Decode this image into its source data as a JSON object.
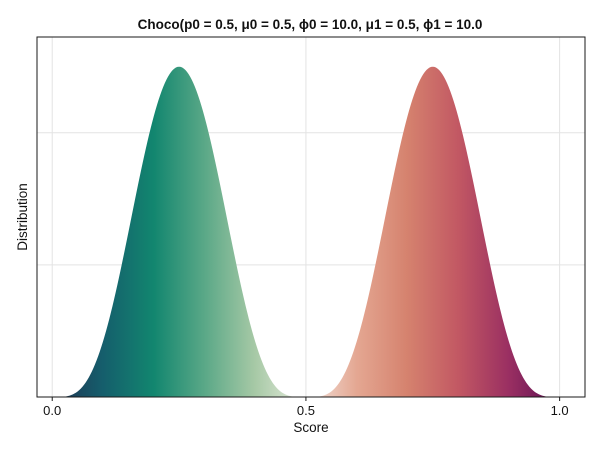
{
  "chart_data": {
    "type": "area",
    "title": "Choco(p0 = 0.5, μ0 = 0.5, ϕ0 = 10.0, μ1 = 0.5, ϕ1 = 10.0",
    "xlabel": "Score",
    "ylabel": "Distribution",
    "xlim": [
      -0.03,
      1.05
    ],
    "ylim": [
      0,
      1.09
    ],
    "xticks": [
      {
        "value": 0.0,
        "label": "0.0"
      },
      {
        "value": 0.5,
        "label": "0.5"
      },
      {
        "value": 1.0,
        "label": "1.0"
      }
    ],
    "y_gridlines": [
      0.4,
      0.8
    ],
    "grid": true,
    "y_tick_labels_shown": false,
    "distribution": {
      "p0": 0.5,
      "mu0": 0.5,
      "phi0": 10.0,
      "mu1": 0.5,
      "phi1": 10.0
    },
    "series": [
      {
        "side": "left",
        "x_range": [
          0.0,
          0.5
        ],
        "peak_x": 0.25,
        "gradient_colors": [
          "#1f3150",
          "#155e6c",
          "#12866f",
          "#5aa887",
          "#a7c9a6",
          "#e9ede0"
        ]
      },
      {
        "side": "right",
        "x_range": [
          0.5,
          1.0
        ],
        "peak_x": 0.75,
        "gradient_colors": [
          "#f2e3dc",
          "#e4a792",
          "#d5826e",
          "#c25863",
          "#9a2f62",
          "#5c0f52"
        ]
      }
    ]
  }
}
